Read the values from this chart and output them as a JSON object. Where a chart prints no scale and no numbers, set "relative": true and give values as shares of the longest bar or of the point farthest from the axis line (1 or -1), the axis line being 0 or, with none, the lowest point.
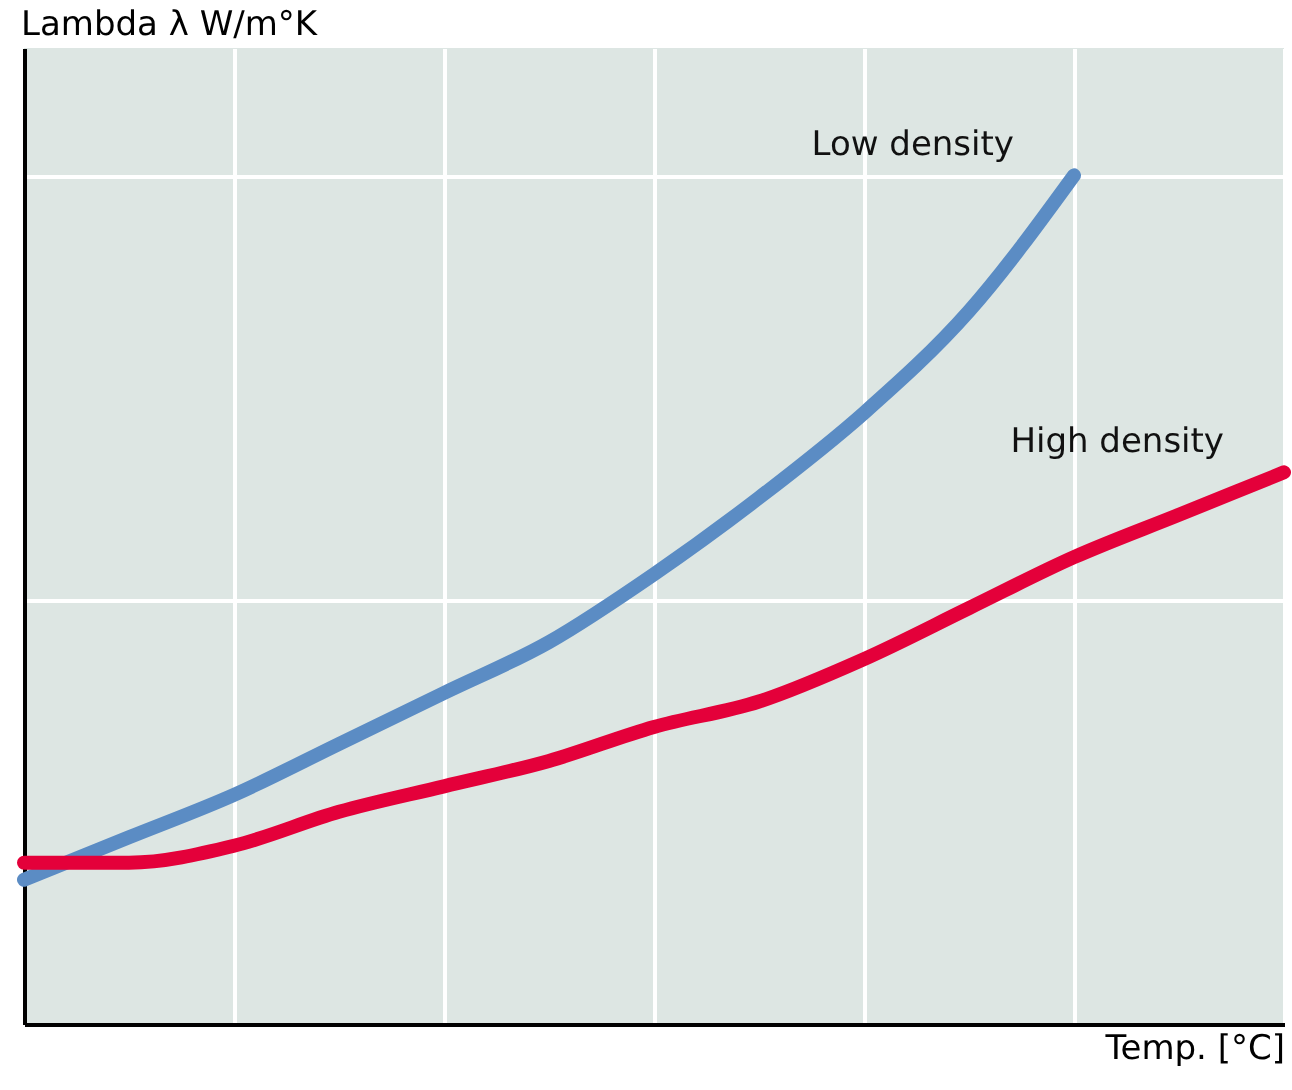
{
  "chart_data": {
    "type": "line",
    "relative": true,
    "xlabel": "Temp. [°C]",
    "ylabel": "Lambda λ W/m°K",
    "grid": true,
    "line_style": "solid",
    "categories": [
      null,
      null,
      null,
      null,
      null,
      null,
      null,
      null,
      null,
      null,
      null,
      null,
      null
    ],
    "series": [
      {
        "name": "Low density",
        "color": "#5b8cc4",
        "values": [
          0.17,
          0.22,
          0.27,
          0.33,
          0.39,
          0.45,
          0.53,
          0.62,
          0.72,
          0.84,
          1.0,
          null,
          null
        ]
      },
      {
        "name": "High density",
        "color": "#e4003a",
        "values": [
          0.19,
          0.19,
          0.21,
          0.25,
          0.28,
          0.31,
          0.35,
          0.38,
          0.43,
          0.49,
          0.55,
          0.6,
          0.65
        ]
      }
    ]
  }
}
